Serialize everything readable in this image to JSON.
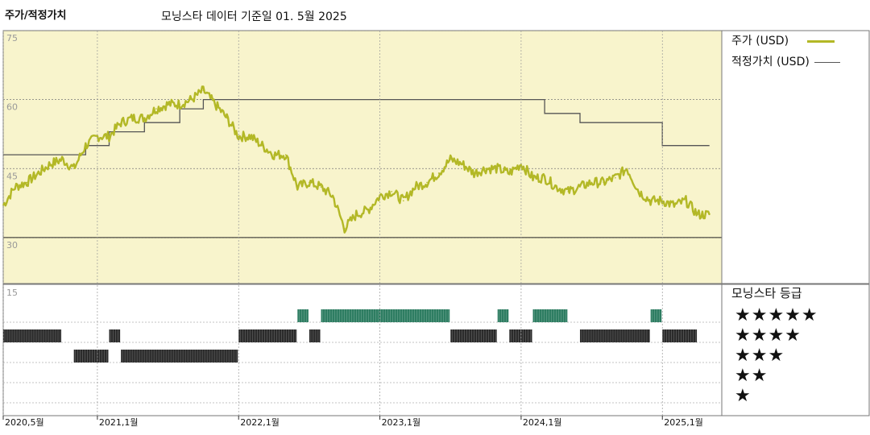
{
  "header": {
    "title": "주가/적정가치",
    "subtitle": "모닝스타 데이터 기준일 01. 5월 2025"
  },
  "legend": {
    "price_label": "주가 (USD)",
    "fair_value_label": "적정가치 (USD)"
  },
  "ratings": {
    "title": "모닝스타 등급",
    "levels": [
      "★★★★★",
      "★★★★",
      "★★★",
      "★★",
      "★"
    ]
  },
  "colors": {
    "panel_bg": "#f8f4cc",
    "price_line": "#b3b826",
    "fair_value_line": "#555555",
    "bar_dark": "#2b2b2b",
    "bar_green": "#2e7d62"
  },
  "chart_data": [
    {
      "type": "line",
      "ylim": [
        20,
        75
      ],
      "yticks": [
        "75",
        "60",
        "45",
        "30"
      ],
      "x_range": [
        "2020-05",
        "2025-05"
      ],
      "xticks": [
        "2020,5월",
        "2021,1월",
        "2022,1월",
        "2023,1월",
        "2024,1월",
        "2025,1월"
      ],
      "series": [
        {
          "name": "주가 (USD)",
          "points": [
            [
              "2020-05",
              37
            ],
            [
              "2020-06",
              41
            ],
            [
              "2020-07",
              42
            ],
            [
              "2020-08",
              44
            ],
            [
              "2020-09",
              46
            ],
            [
              "2020-10",
              47
            ],
            [
              "2020-11",
              45
            ],
            [
              "2020-12",
              50
            ],
            [
              "2021-01",
              52
            ],
            [
              "2021-02",
              52
            ],
            [
              "2021-03",
              55
            ],
            [
              "2021-04",
              56
            ],
            [
              "2021-05",
              56
            ],
            [
              "2021-06",
              58
            ],
            [
              "2021-07",
              59
            ],
            [
              "2021-08",
              59
            ],
            [
              "2021-09",
              60
            ],
            [
              "2021-10",
              62
            ],
            [
              "2021-11",
              59
            ],
            [
              "2021-12",
              56
            ],
            [
              "2022-01",
              52
            ],
            [
              "2022-02",
              52
            ],
            [
              "2022-03",
              50
            ],
            [
              "2022-04",
              48
            ],
            [
              "2022-05",
              48
            ],
            [
              "2022-06",
              41
            ],
            [
              "2022-07",
              42
            ],
            [
              "2022-08",
              41
            ],
            [
              "2022-09",
              39
            ],
            [
              "2022-10",
              32
            ],
            [
              "2022-11",
              35
            ],
            [
              "2022-12",
              36
            ],
            [
              "2023-01",
              39
            ],
            [
              "2023-02",
              40
            ],
            [
              "2023-03",
              38
            ],
            [
              "2023-04",
              41
            ],
            [
              "2023-05",
              42
            ],
            [
              "2023-06",
              44
            ],
            [
              "2023-07",
              47
            ],
            [
              "2023-08",
              46
            ],
            [
              "2023-09",
              44
            ],
            [
              "2023-10",
              45
            ],
            [
              "2023-11",
              45
            ],
            [
              "2023-12",
              44
            ],
            [
              "2024-01",
              46
            ],
            [
              "2024-02",
              43
            ],
            [
              "2024-03",
              43
            ],
            [
              "2024-04",
              41
            ],
            [
              "2024-05",
              40
            ],
            [
              "2024-06",
              41
            ],
            [
              "2024-07",
              42
            ],
            [
              "2024-08",
              42
            ],
            [
              "2024-09",
              43
            ],
            [
              "2024-10",
              45
            ],
            [
              "2024-11",
              40
            ],
            [
              "2024-12",
              38
            ],
            [
              "2025-01",
              38
            ],
            [
              "2025-02",
              37
            ],
            [
              "2025-03",
              38
            ],
            [
              "2025-04",
              35
            ],
            [
              "2025-05",
              35
            ]
          ]
        },
        {
          "name": "적정가치 (USD)",
          "points": [
            [
              "2020-05",
              48
            ],
            [
              "2020-12",
              48
            ],
            [
              "2020-12",
              50
            ],
            [
              "2021-02",
              50
            ],
            [
              "2021-02",
              53
            ],
            [
              "2021-05",
              53
            ],
            [
              "2021-05",
              55
            ],
            [
              "2021-08",
              55
            ],
            [
              "2021-08",
              58
            ],
            [
              "2021-10",
              58
            ],
            [
              "2021-10",
              60
            ],
            [
              "2024-03",
              60
            ],
            [
              "2024-03",
              57
            ],
            [
              "2024-06",
              57
            ],
            [
              "2024-06",
              55
            ],
            [
              "2025-01",
              55
            ],
            [
              "2025-01",
              50
            ],
            [
              "2025-05",
              50
            ]
          ]
        }
      ]
    },
    {
      "type": "bar",
      "title": "모닝스타 등급",
      "ylabel_tick": "15",
      "x_range": [
        "2020-05",
        "2025-05"
      ],
      "segments": [
        {
          "rating": 4,
          "start": "2020-05",
          "end": "2020-10"
        },
        {
          "rating": 3,
          "start": "2020-11",
          "end": "2021-02"
        },
        {
          "rating": 4,
          "start": "2021-02",
          "end": "2021-03"
        },
        {
          "rating": 3,
          "start": "2021-03",
          "end": "2022-01"
        },
        {
          "rating": 4,
          "start": "2022-01",
          "end": "2022-06"
        },
        {
          "rating": 5,
          "start": "2022-06",
          "end": "2022-07"
        },
        {
          "rating": 4,
          "start": "2022-07",
          "end": "2022-08"
        },
        {
          "rating": 5,
          "start": "2022-08",
          "end": "2023-07"
        },
        {
          "rating": 4,
          "start": "2023-07",
          "end": "2023-11"
        },
        {
          "rating": 5,
          "start": "2023-11",
          "end": "2023-12"
        },
        {
          "rating": 4,
          "start": "2023-12",
          "end": "2024-02"
        },
        {
          "rating": 5,
          "start": "2024-02",
          "end": "2024-05"
        },
        {
          "rating": 4,
          "start": "2024-06",
          "end": "2024-12"
        },
        {
          "rating": 5,
          "start": "2024-12",
          "end": "2025-01"
        },
        {
          "rating": 4,
          "start": "2025-01",
          "end": "2025-04"
        }
      ]
    }
  ]
}
